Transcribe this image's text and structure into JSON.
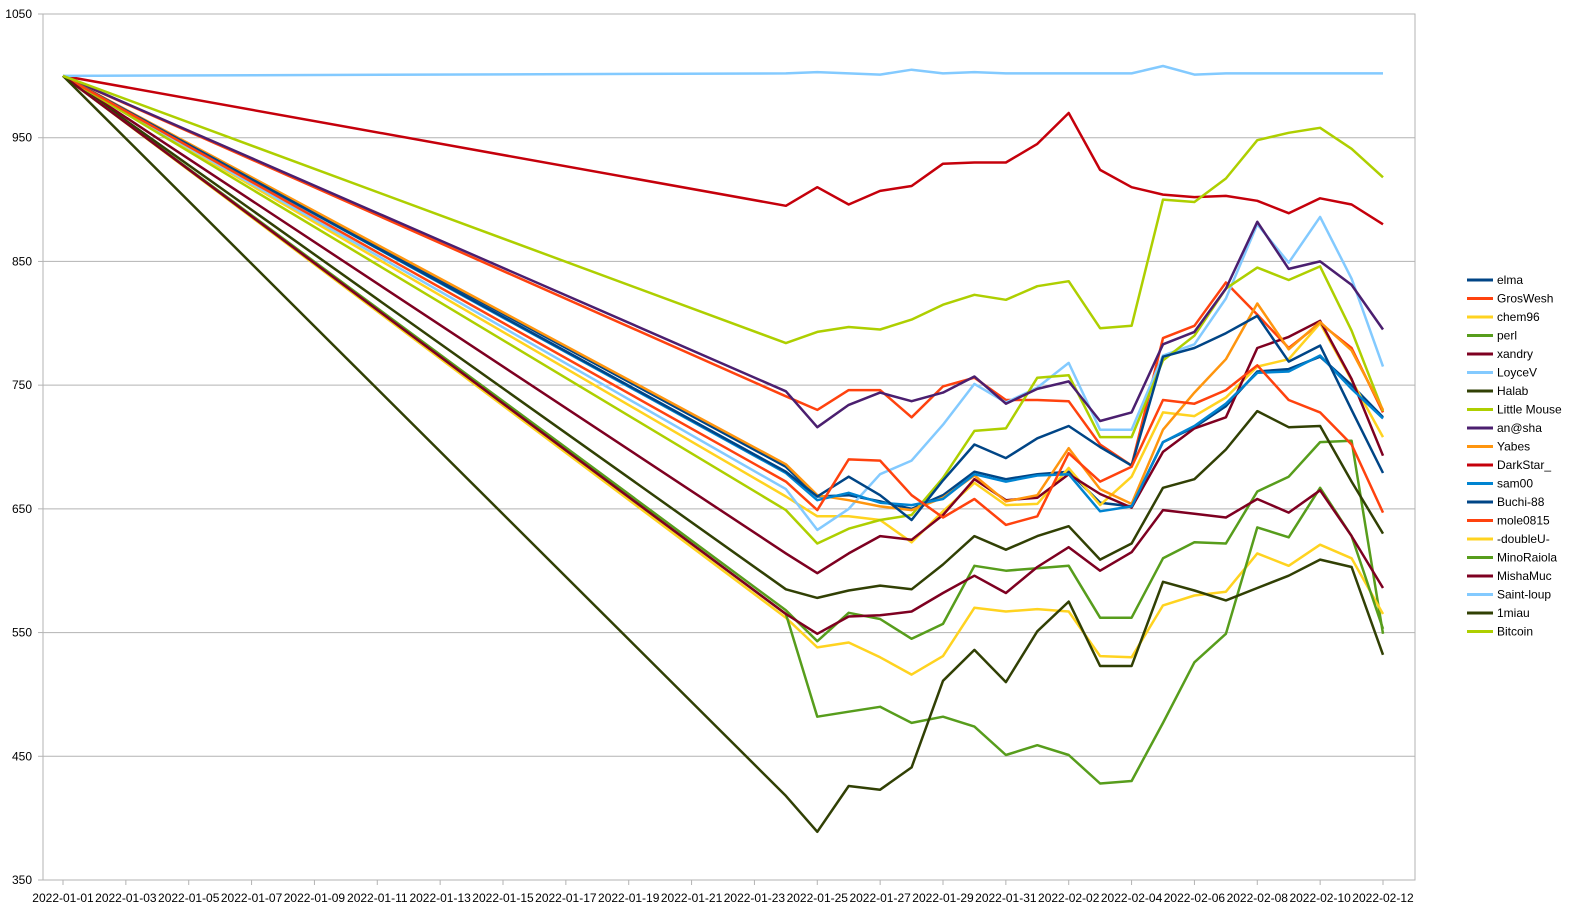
{
  "chart_data": {
    "type": "line",
    "title": "",
    "xlabel": "",
    "ylabel": "",
    "ylim": [
      350,
      1050
    ],
    "yticks": [
      350,
      450,
      550,
      650,
      750,
      850,
      950,
      1050
    ],
    "xticks": [
      "2022-01-01",
      "2022-01-03",
      "2022-01-05",
      "2022-01-07",
      "2022-01-09",
      "2022-01-11",
      "2022-01-13",
      "2022-01-15",
      "2022-01-17",
      "2022-01-19",
      "2022-01-21",
      "2022-01-23",
      "2022-01-25",
      "2022-01-27",
      "2022-01-29",
      "2022-01-31",
      "2022-02-02",
      "2022-02-04",
      "2022-02-06",
      "2022-02-08",
      "2022-02-10",
      "2022-02-12"
    ],
    "x": [
      "2022-01-01",
      "2022-01-24",
      "2022-01-25",
      "2022-01-26",
      "2022-01-27",
      "2022-01-28",
      "2022-01-29",
      "2022-01-30",
      "2022-01-31",
      "2022-02-01",
      "2022-02-02",
      "2022-02-03",
      "2022-02-04",
      "2022-02-05",
      "2022-02-06",
      "2022-02-07",
      "2022-02-08",
      "2022-02-09",
      "2022-02-10",
      "2022-02-11",
      "2022-02-12"
    ],
    "grid": true,
    "legend": "right",
    "series": [
      {
        "name": "elma",
        "color": "#004586",
        "values": [
          1000,
          684,
          660,
          661,
          656,
          650,
          661,
          680,
          674,
          678,
          680,
          655,
          652,
          704,
          716,
          733,
          761,
          763,
          773,
          750,
          724
        ]
      },
      {
        "name": "GrosWesh",
        "color": "#ff420e",
        "values": [
          1000,
          741,
          730,
          746,
          746,
          724,
          749,
          756,
          738,
          738,
          737,
          702,
          685,
          788,
          798,
          833,
          807,
          780,
          800,
          780,
          728
        ]
      },
      {
        "name": "chem96",
        "color": "#ffd320",
        "values": [
          1000,
          660,
          644,
          644,
          641,
          623,
          648,
          671,
          653,
          654,
          683,
          653,
          676,
          728,
          725,
          740,
          765,
          771,
          800,
          754,
          708
        ]
      },
      {
        "name": "perl",
        "color": "#579d1c",
        "values": [
          1000,
          568,
          543,
          566,
          561,
          545,
          557,
          604,
          600,
          602,
          604,
          562,
          562,
          610,
          623,
          622,
          664,
          676,
          704,
          705,
          549
        ]
      },
      {
        "name": "xandry",
        "color": "#7e0021",
        "values": [
          1000,
          614,
          598,
          614,
          628,
          625,
          645,
          674,
          657,
          659,
          678,
          662,
          651,
          696,
          715,
          724,
          780,
          789,
          802,
          755,
          693
        ]
      },
      {
        "name": "LoyceV",
        "color": "#83caff",
        "values": [
          1000,
          666,
          633,
          650,
          678,
          689,
          718,
          751,
          736,
          748,
          768,
          714,
          714,
          774,
          783,
          820,
          880,
          849,
          886,
          836,
          765
        ]
      },
      {
        "name": "Halab",
        "color": "#314004",
        "values": [
          1000,
          585,
          578,
          584,
          588,
          585,
          605,
          628,
          617,
          628,
          636,
          609,
          622,
          667,
          674,
          698,
          729,
          716,
          717,
          672,
          630
        ]
      },
      {
        "name": "Little Mouse",
        "color": "#aecf00",
        "values": [
          1000,
          649,
          622,
          634,
          641,
          645,
          675,
          713,
          715,
          756,
          758,
          708,
          708,
          770,
          790,
          828,
          845,
          835,
          846,
          794,
          729
        ]
      },
      {
        "name": "an@sha",
        "color": "#4b1f6f",
        "values": [
          1000,
          745,
          716,
          734,
          744,
          737,
          744,
          757,
          735,
          747,
          753,
          721,
          728,
          783,
          793,
          828,
          882,
          844,
          850,
          831,
          795
        ]
      },
      {
        "name": "Yabes",
        "color": "#ff950e",
        "values": [
          1000,
          686,
          661,
          657,
          652,
          649,
          659,
          677,
          656,
          661,
          699,
          666,
          654,
          714,
          744,
          771,
          816,
          779,
          801,
          778,
          730
        ]
      },
      {
        "name": "DarkStar_",
        "color": "#c5000b",
        "values": [
          1000,
          895,
          910,
          896,
          907,
          911,
          929,
          930,
          930,
          945,
          970,
          924,
          910,
          904,
          902,
          903,
          899,
          889,
          901,
          896,
          880
        ]
      },
      {
        "name": "sam00",
        "color": "#0084d1",
        "values": [
          1000,
          679,
          657,
          663,
          655,
          653,
          658,
          678,
          672,
          677,
          678,
          648,
          652,
          704,
          717,
          735,
          760,
          761,
          774,
          747,
          723
        ]
      },
      {
        "name": "Buchi-88",
        "color": "#004586",
        "values": [
          1000,
          680,
          660,
          676,
          661,
          641,
          673,
          702,
          691,
          707,
          717,
          700,
          685,
          773,
          780,
          792,
          806,
          769,
          782,
          730,
          679
        ]
      },
      {
        "name": "mole0815",
        "color": "#ff420e",
        "values": [
          1000,
          672,
          649,
          690,
          689,
          661,
          643,
          658,
          637,
          644,
          695,
          672,
          684,
          738,
          735,
          746,
          766,
          738,
          728,
          702,
          647
        ]
      },
      {
        "name": "-doubleU-",
        "color": "#ffd320",
        "values": [
          1000,
          562,
          538,
          542,
          530,
          516,
          531,
          570,
          567,
          569,
          567,
          531,
          530,
          572,
          580,
          583,
          614,
          604,
          621,
          610,
          565
        ]
      },
      {
        "name": "MinoRaiola",
        "color": "#579d1c",
        "values": [
          1000,
          565,
          482,
          486,
          490,
          477,
          482,
          474,
          451,
          459,
          451,
          428,
          430,
          477,
          526,
          549,
          635,
          627,
          667,
          628,
          553
        ]
      },
      {
        "name": "MishaMuc",
        "color": "#7e0021",
        "values": [
          1000,
          565,
          549,
          563,
          564,
          567,
          582,
          596,
          582,
          603,
          619,
          600,
          615,
          649,
          646,
          643,
          658,
          647,
          665,
          628,
          586
        ]
      },
      {
        "name": "Saint-loup",
        "color": "#83caff",
        "values": [
          1000,
          1002,
          1003,
          1002,
          1001,
          1005,
          1002,
          1003,
          1002,
          1002,
          1002,
          1002,
          1002,
          1008,
          1001,
          1002,
          1002,
          1002,
          1002,
          1002,
          1002
        ]
      },
      {
        "name": "1miau",
        "color": "#314004",
        "values": [
          1000,
          418,
          389,
          426,
          423,
          441,
          511,
          536,
          510,
          551,
          575,
          523,
          523,
          591,
          584,
          576,
          586,
          596,
          609,
          603,
          532
        ]
      },
      {
        "name": "Bitcoin",
        "color": "#aecf00",
        "values": [
          1000,
          784,
          793,
          797,
          795,
          803,
          815,
          823,
          819,
          830,
          834,
          796,
          798,
          900,
          898,
          917,
          948,
          954,
          958,
          941,
          918
        ]
      }
    ]
  }
}
